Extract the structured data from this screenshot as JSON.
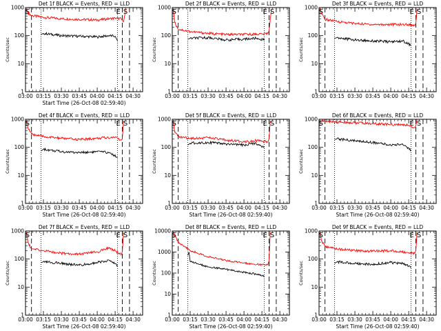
{
  "chart_data": [
    {
      "type": "line",
      "title": "Det 1f BLACK = Events, RED = LLD",
      "xlabel": "Start Time (26-Oct-08 02:59:40)",
      "ylabel": "Counts/sec",
      "yscale": "log",
      "ylim": [
        1,
        1000
      ],
      "yticks": [
        "1",
        "10",
        "100",
        "1000"
      ],
      "xlim": [
        "03:00",
        "04:38"
      ],
      "xticks": [
        "03:00",
        "03:15",
        "03:30",
        "03:45",
        "04:00",
        "04:15",
        "04:30"
      ],
      "markers": {
        "dashed": [
          "03:05",
          "04:21",
          "04:27"
        ],
        "dotted": [
          "03:13",
          "04:17"
        ]
      },
      "labels": {
        "S_left": "S",
        "E": "E",
        "S_right": "S"
      },
      "series": [
        {
          "color": "#ff0000",
          "x": [
            "03:01",
            "03:02",
            "03:05",
            "03:15",
            "03:30",
            "03:45",
            "04:00",
            "04:10",
            "04:15",
            "04:20",
            "04:22",
            "04:24"
          ],
          "values": [
            900,
            650,
            520,
            450,
            400,
            380,
            360,
            400,
            420,
            400,
            310,
            900
          ]
        },
        {
          "color": "#000000",
          "x": [
            "03:13",
            "03:15",
            "03:30",
            "03:45",
            "04:00",
            "04:10",
            "04:15",
            "04:17"
          ],
          "values": [
            110,
            120,
            100,
            95,
            90,
            100,
            95,
            65
          ]
        }
      ]
    },
    {
      "type": "line",
      "title": "Det 2f BLACK = Events, RED = LLD",
      "xlabel": "",
      "ylabel": "Counts/sec",
      "yscale": "log",
      "ylim": [
        1,
        1000
      ],
      "yticks": [
        "1",
        "10",
        "100",
        "1000"
      ],
      "xlim": [
        "03:00",
        "04:38"
      ],
      "xticks": [
        "03:00",
        "03:15",
        "03:30",
        "03:45",
        "04:00",
        "04:15",
        "04:30"
      ],
      "markers": {
        "dashed": [
          "03:05",
          "04:21",
          "04:27"
        ],
        "dotted": [
          "03:13",
          "04:17"
        ]
      },
      "labels": {
        "S_left": "S",
        "E": "E",
        "S_right": "S"
      },
      "series": [
        {
          "color": "#ff0000",
          "x": [
            "03:01",
            "03:02",
            "03:05",
            "03:15",
            "03:30",
            "03:45",
            "04:00",
            "04:15",
            "04:20",
            "04:21",
            "04:23"
          ],
          "values": [
            800,
            300,
            170,
            140,
            120,
            110,
            110,
            115,
            120,
            150,
            900
          ]
        },
        {
          "color": "#000000",
          "x": [
            "03:13",
            "03:15",
            "03:30",
            "03:45",
            "04:00",
            "04:10",
            "04:17"
          ],
          "values": [
            75,
            80,
            85,
            70,
            75,
            80,
            70
          ]
        }
      ]
    },
    {
      "type": "line",
      "title": "Det 3f BLACK = Events, RED = LLD",
      "xlabel": "",
      "ylabel": "Counts/sec",
      "yscale": "log",
      "ylim": [
        1,
        1000
      ],
      "yticks": [
        "1",
        "10",
        "100",
        "1000"
      ],
      "xlim": [
        "03:00",
        "04:38"
      ],
      "xticks": [
        "03:00",
        "03:15",
        "03:30",
        "03:45",
        "04:00",
        "04:15",
        "04:30"
      ],
      "markers": {
        "dashed": [
          "03:05",
          "04:21",
          "04:27"
        ],
        "dotted": [
          "03:13",
          "04:17"
        ]
      },
      "labels": {
        "S_left": "S",
        "E": "E",
        "S_right": "S"
      },
      "series": [
        {
          "color": "#ff0000",
          "x": [
            "03:01",
            "03:02",
            "03:05",
            "03:15",
            "03:30",
            "03:45",
            "04:00",
            "04:15",
            "04:20",
            "04:21",
            "04:22"
          ],
          "values": [
            950,
            600,
            380,
            320,
            270,
            250,
            250,
            250,
            230,
            270,
            900
          ]
        },
        {
          "color": "#000000",
          "x": [
            "03:13",
            "03:15",
            "03:30",
            "03:45",
            "04:00",
            "04:10",
            "04:17"
          ],
          "values": [
            80,
            85,
            70,
            65,
            60,
            65,
            45
          ]
        }
      ]
    },
    {
      "type": "line",
      "title": "Det 4f BLACK = Events, RED = LLD",
      "xlabel": "Start Time (26-Oct-08 02:59:40)",
      "ylabel": "Counts/sec",
      "yscale": "log",
      "ylim": [
        1,
        1000
      ],
      "yticks": [
        "1",
        "10",
        "100",
        "1000"
      ],
      "xlim": [
        "03:00",
        "04:38"
      ],
      "xticks": [
        "03:00",
        "03:15",
        "03:30",
        "03:45",
        "04:00",
        "04:15",
        "04:30"
      ],
      "markers": {
        "dashed": [
          "03:05",
          "04:21",
          "04:27"
        ],
        "dotted": [
          "03:13",
          "04:17"
        ]
      },
      "labels": {
        "S_left": "S",
        "E": "E",
        "S_right": "S"
      },
      "series": [
        {
          "color": "#ff0000",
          "x": [
            "03:01",
            "03:02",
            "03:05",
            "03:15",
            "03:30",
            "03:45",
            "04:00",
            "04:15",
            "04:20",
            "04:21",
            "04:22"
          ],
          "values": [
            900,
            500,
            300,
            240,
            210,
            190,
            210,
            230,
            180,
            200,
            900
          ]
        },
        {
          "color": "#000000",
          "x": [
            "03:13",
            "03:15",
            "03:30",
            "03:45",
            "04:00",
            "04:10",
            "04:17"
          ],
          "values": [
            75,
            85,
            70,
            65,
            70,
            65,
            45
          ]
        }
      ]
    },
    {
      "type": "line",
      "title": "Det 5f BLACK = Events, RED = LLD",
      "xlabel": "Start Time (26-Oct-08 02:59:40)",
      "ylabel": "Counts/sec",
      "yscale": "log",
      "ylim": [
        1,
        1000
      ],
      "yticks": [
        "1",
        "10",
        "100",
        "1000"
      ],
      "xlim": [
        "03:00",
        "04:38"
      ],
      "xticks": [
        "03:00",
        "03:15",
        "03:30",
        "03:45",
        "04:00",
        "04:15",
        "04:30"
      ],
      "markers": {
        "dashed": [
          "03:05",
          "04:21",
          "04:27"
        ],
        "dotted": [
          "03:13",
          "04:17"
        ]
      },
      "labels": {
        "S_left": "S",
        "E": "E",
        "S_right": "S"
      },
      "series": [
        {
          "color": "#ff0000",
          "x": [
            "03:01",
            "03:02",
            "03:05",
            "03:15",
            "03:30",
            "03:45",
            "04:00",
            "04:10",
            "04:15",
            "04:20",
            "04:21",
            "04:22"
          ],
          "values": [
            800,
            350,
            240,
            210,
            220,
            180,
            160,
            175,
            160,
            155,
            200,
            900
          ]
        },
        {
          "color": "#000000",
          "x": [
            "03:13",
            "03:15",
            "03:30",
            "03:45",
            "04:00",
            "04:10",
            "04:17"
          ],
          "values": [
            120,
            140,
            150,
            130,
            120,
            140,
            100
          ]
        }
      ]
    },
    {
      "type": "line",
      "title": "Det 6f BLACK = Events, RED = LLD",
      "xlabel": "Start Time (26-Oct-08 02:59:40)",
      "ylabel": "Counts/sec",
      "yscale": "log",
      "ylim": [
        1,
        1000
      ],
      "yticks": [
        "1",
        "10",
        "100",
        "1000"
      ],
      "xlim": [
        "03:00",
        "04:38"
      ],
      "xticks": [
        "03:00",
        "03:15",
        "03:30",
        "03:45",
        "04:00",
        "04:15",
        "04:30"
      ],
      "markers": {
        "dashed": [
          "03:05",
          "04:21",
          "04:27"
        ],
        "dotted": [
          "03:13",
          "04:17"
        ]
      },
      "labels": {
        "S_left": "S",
        "E": "E",
        "S_right": "S"
      },
      "series": [
        {
          "color": "#ff0000",
          "x": [
            "03:01",
            "03:05",
            "03:15",
            "03:30",
            "03:45",
            "04:00",
            "04:15",
            "04:20",
            "04:21",
            "04:22"
          ],
          "values": [
            900,
            850,
            800,
            750,
            700,
            650,
            620,
            500,
            600,
            1000
          ]
        },
        {
          "color": "#000000",
          "x": [
            "03:13",
            "03:15",
            "03:30",
            "03:45",
            "04:00",
            "04:10",
            "04:17"
          ],
          "values": [
            190,
            200,
            170,
            150,
            120,
            130,
            80
          ]
        }
      ]
    },
    {
      "type": "line",
      "title": "Det 7f BLACK = Events, RED = LLD",
      "xlabel": "Start Time (26-Oct-08 02:59:40)",
      "ylabel": "Counts/sec",
      "yscale": "log",
      "ylim": [
        1,
        1000
      ],
      "yticks": [
        "1",
        "10",
        "100",
        "1000"
      ],
      "xlim": [
        "03:00",
        "04:38"
      ],
      "xticks": [
        "03:00",
        "03:15",
        "03:30",
        "03:45",
        "04:00",
        "04:15",
        "04:30"
      ],
      "markers": {
        "dashed": [
          "03:05",
          "04:21",
          "04:27"
        ],
        "dotted": [
          "03:13",
          "04:17"
        ]
      },
      "labels": {
        "S_left": "S",
        "E": "E",
        "S_right": "S"
      },
      "series": [
        {
          "color": "#ff0000",
          "x": [
            "03:01",
            "03:02",
            "03:05",
            "03:15",
            "03:30",
            "03:45",
            "04:00",
            "04:10",
            "04:15",
            "04:20",
            "04:21",
            "04:22"
          ],
          "values": [
            900,
            400,
            230,
            200,
            160,
            150,
            180,
            250,
            200,
            140,
            180,
            900
          ]
        },
        {
          "color": "#000000",
          "x": [
            "03:13",
            "03:15",
            "03:30",
            "03:45",
            "04:00",
            "04:10",
            "04:17"
          ],
          "values": [
            75,
            80,
            70,
            60,
            75,
            90,
            60
          ]
        }
      ]
    },
    {
      "type": "line",
      "title": "Det 8f BLACK = Events, RED = LLD",
      "xlabel": "Start Time (26-Oct-08 02:59:40)",
      "ylabel": "Counts/sec",
      "yscale": "log",
      "ylim": [
        1,
        10000
      ],
      "yticks": [
        "1",
        "10",
        "100",
        "1000",
        "10000"
      ],
      "xlim": [
        "03:00",
        "04:38"
      ],
      "xticks": [
        "03:00",
        "03:15",
        "03:30",
        "03:45",
        "04:00",
        "04:15",
        "04:30"
      ],
      "markers": {
        "dashed": [
          "03:05",
          "04:21",
          "04:27"
        ],
        "dotted": [
          "03:13",
          "04:17"
        ]
      },
      "labels": {
        "S_left": "S",
        "E": "E",
        "S_right": "S"
      },
      "series": [
        {
          "color": "#ff0000",
          "x": [
            "03:01",
            "03:05",
            "03:15",
            "03:30",
            "03:45",
            "04:00",
            "04:15",
            "04:20",
            "04:21",
            "04:22"
          ],
          "values": [
            8000,
            3000,
            1200,
            600,
            400,
            300,
            250,
            250,
            400,
            9000
          ]
        },
        {
          "color": "#000000",
          "x": [
            "03:13",
            "03:14",
            "03:15",
            "03:30",
            "03:45",
            "04:00",
            "04:10",
            "04:17"
          ],
          "values": [
            700,
            1000,
            350,
            200,
            150,
            110,
            90,
            70
          ]
        }
      ]
    },
    {
      "type": "line",
      "title": "Det 9f BLACK = Events, RED = LLD",
      "xlabel": "Start Time (26-Oct-08 02:59:40)",
      "ylabel": "Counts/sec",
      "yscale": "log",
      "ylim": [
        1,
        1000
      ],
      "yticks": [
        "1",
        "10",
        "100",
        "1000"
      ],
      "xlim": [
        "03:00",
        "04:38"
      ],
      "xticks": [
        "03:00",
        "03:15",
        "03:30",
        "03:45",
        "04:00",
        "04:15",
        "04:30"
      ],
      "markers": {
        "dashed": [
          "03:05",
          "04:21",
          "04:27"
        ],
        "dotted": [
          "03:13",
          "04:17"
        ]
      },
      "labels": {
        "S_left": "S",
        "E": "E",
        "S_right": "S"
      },
      "series": [
        {
          "color": "#ff0000",
          "x": [
            "03:01",
            "03:02",
            "03:05",
            "03:15",
            "03:30",
            "03:45",
            "04:00",
            "04:15",
            "04:20",
            "04:21",
            "04:22"
          ],
          "values": [
            900,
            450,
            280,
            230,
            200,
            190,
            200,
            170,
            160,
            200,
            900
          ]
        },
        {
          "color": "#000000",
          "x": [
            "03:13",
            "03:15",
            "03:30",
            "03:45",
            "04:00",
            "04:10",
            "04:17"
          ],
          "values": [
            70,
            80,
            70,
            65,
            75,
            70,
            50
          ]
        }
      ]
    }
  ]
}
